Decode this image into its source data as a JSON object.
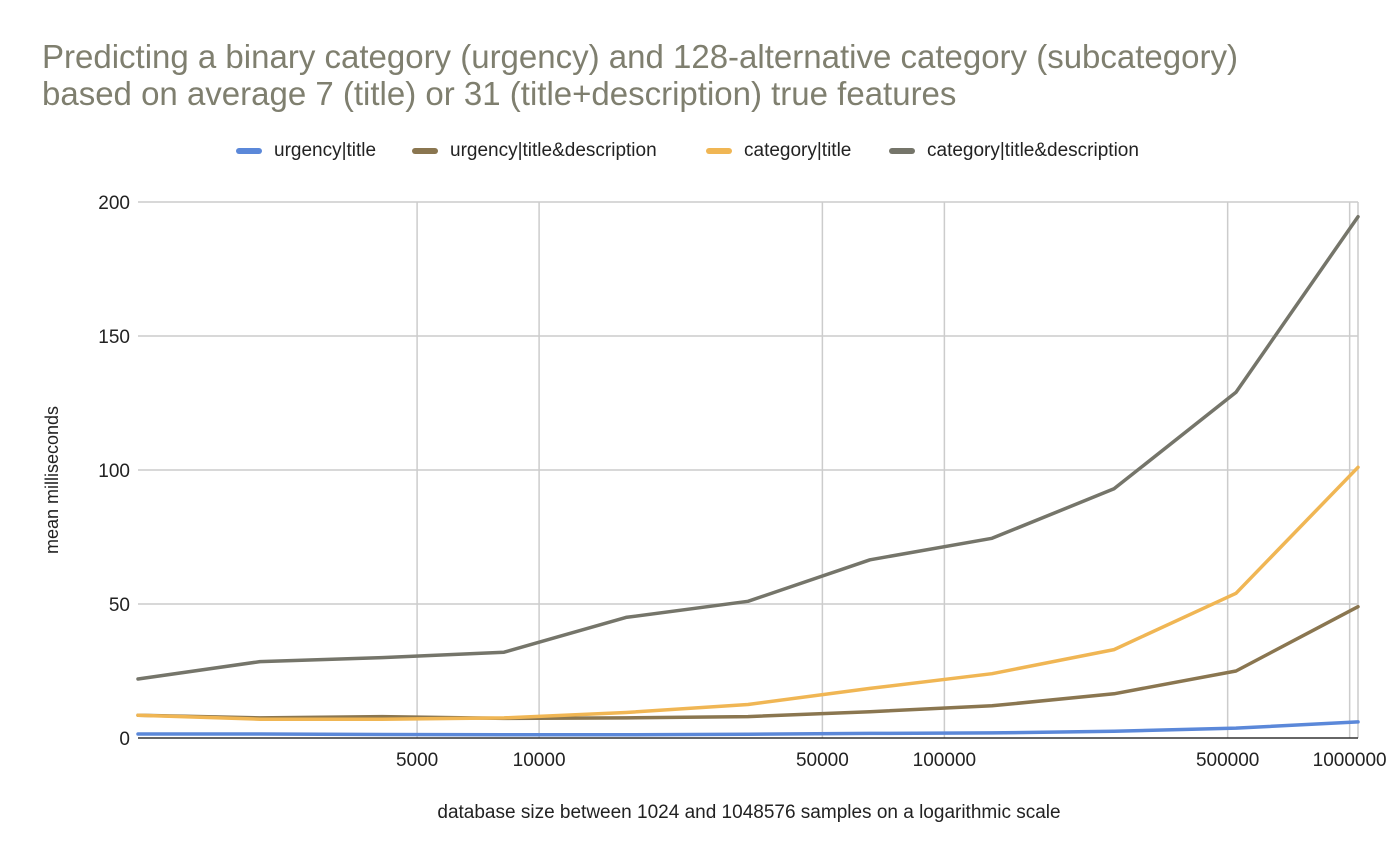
{
  "chart_data": {
    "type": "line",
    "title_line1": "Predicting a binary category (urgency) and 128-alternative category (subcategory)",
    "title_line2": "based on average 7 (title) or 31 (title+description) true features",
    "xlabel": "database size between 1024 and 1048576 samples on a logarithmic scale",
    "ylabel": "mean milliseconds",
    "x_scale": "log",
    "xlim": [
      1024,
      1048576
    ],
    "ylim": [
      0,
      200
    ],
    "yticks": [
      0,
      50,
      100,
      150,
      200
    ],
    "xticks": [
      5000,
      10000,
      50000,
      100000,
      500000,
      1000000
    ],
    "grid": true,
    "legend_position": "top",
    "x": [
      1024,
      2048,
      4096,
      8192,
      16384,
      32768,
      65536,
      131072,
      262144,
      524288,
      1048576
    ],
    "series": [
      {
        "name": "urgency|title",
        "color": "#5b88d9",
        "values": [
          1.5,
          1.5,
          1.3,
          1.2,
          1.2,
          1.4,
          1.7,
          1.9,
          2.5,
          3.7,
          6.0
        ]
      },
      {
        "name": "urgency|title&description",
        "color": "#8a7650",
        "values": [
          8.5,
          7.5,
          8.0,
          7.3,
          7.5,
          8.0,
          9.8,
          12.0,
          16.5,
          25.0,
          49.0
        ]
      },
      {
        "name": "category|title",
        "color": "#f0b654",
        "values": [
          8.5,
          7.0,
          7.0,
          7.5,
          9.5,
          12.5,
          18.5,
          24.0,
          33.0,
          54.0,
          101.0
        ]
      },
      {
        "name": "category|title&description",
        "color": "#75756a",
        "values": [
          22.0,
          28.5,
          30.0,
          32.0,
          45.0,
          51.0,
          66.5,
          74.5,
          93.0,
          129.0,
          194.5
        ]
      }
    ]
  }
}
